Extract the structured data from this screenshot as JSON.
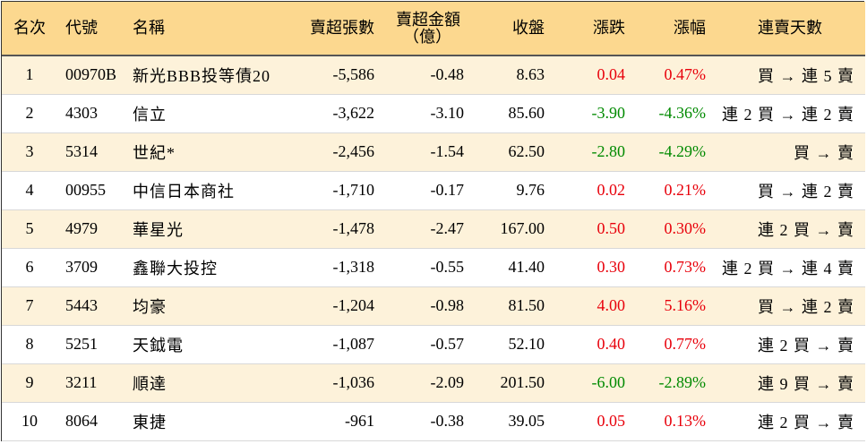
{
  "headers": {
    "rank": "名次",
    "code": "代號",
    "name": "名稱",
    "net_sell_shares": "賣超張數",
    "net_sell_amount_line1": "賣超金額",
    "net_sell_amount_line2": "（億）",
    "close": "收盤",
    "change": "漲跌",
    "change_pct": "漲幅",
    "consecutive_days": "連賣天數"
  },
  "colors": {
    "header_bg": "#fcd88f",
    "odd_row_bg": "#fdf2da",
    "up": "#e8000b",
    "down": "#008a00"
  },
  "rows": [
    {
      "rank": "1",
      "code": "00970B",
      "name": "新光BBB投等債20",
      "shares": "-5,586",
      "amount": "-0.48",
      "close": "8.63",
      "change": "0.04",
      "pct": "0.47%",
      "dir": "up",
      "days": "買 → 連 5 賣"
    },
    {
      "rank": "2",
      "code": "4303",
      "name": "信立",
      "shares": "-3,622",
      "amount": "-3.10",
      "close": "85.60",
      "change": "-3.90",
      "pct": "-4.36%",
      "dir": "down",
      "days": "連 2 買 → 連 2 賣"
    },
    {
      "rank": "3",
      "code": "5314",
      "name": "世紀*",
      "shares": "-2,456",
      "amount": "-1.54",
      "close": "62.50",
      "change": "-2.80",
      "pct": "-4.29%",
      "dir": "down",
      "days": "買 → 賣"
    },
    {
      "rank": "4",
      "code": "00955",
      "name": "中信日本商社",
      "shares": "-1,710",
      "amount": "-0.17",
      "close": "9.76",
      "change": "0.02",
      "pct": "0.21%",
      "dir": "up",
      "days": "買 → 連 2 賣"
    },
    {
      "rank": "5",
      "code": "4979",
      "name": "華星光",
      "shares": "-1,478",
      "amount": "-2.47",
      "close": "167.00",
      "change": "0.50",
      "pct": "0.30%",
      "dir": "up",
      "days": "連 2 買 → 賣"
    },
    {
      "rank": "6",
      "code": "3709",
      "name": "鑫聯大投控",
      "shares": "-1,318",
      "amount": "-0.55",
      "close": "41.40",
      "change": "0.30",
      "pct": "0.73%",
      "dir": "up",
      "days": "連 2 買 → 連 4 賣"
    },
    {
      "rank": "7",
      "code": "5443",
      "name": "均豪",
      "shares": "-1,204",
      "amount": "-0.98",
      "close": "81.50",
      "change": "4.00",
      "pct": "5.16%",
      "dir": "up",
      "days": "買 → 連 2 賣"
    },
    {
      "rank": "8",
      "code": "5251",
      "name": "天鉞電",
      "shares": "-1,087",
      "amount": "-0.57",
      "close": "52.10",
      "change": "0.40",
      "pct": "0.77%",
      "dir": "up",
      "days": "連 2 買 → 賣"
    },
    {
      "rank": "9",
      "code": "3211",
      "name": "順達",
      "shares": "-1,036",
      "amount": "-2.09",
      "close": "201.50",
      "change": "-6.00",
      "pct": "-2.89%",
      "dir": "down",
      "days": "連 9 買 → 賣"
    },
    {
      "rank": "10",
      "code": "8064",
      "name": "東捷",
      "shares": "-961",
      "amount": "-0.38",
      "close": "39.05",
      "change": "0.05",
      "pct": "0.13%",
      "dir": "up",
      "days": "連 2 買 → 賣"
    }
  ]
}
